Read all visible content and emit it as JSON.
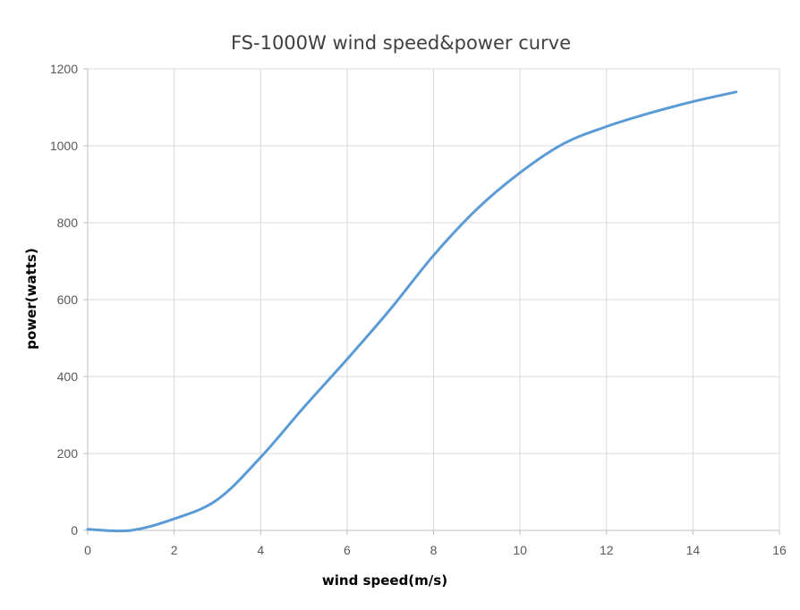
{
  "chart_data": {
    "type": "line",
    "title": "FS-1000W wind speed&power curve",
    "xlabel": "wind speed(m/s)",
    "ylabel": "power(watts)",
    "xlim": [
      0,
      16
    ],
    "ylim": [
      0,
      1200
    ],
    "xticks": [
      0,
      2,
      4,
      6,
      8,
      10,
      12,
      14,
      16
    ],
    "yticks": [
      0,
      200,
      400,
      600,
      800,
      1000,
      1200
    ],
    "grid": true,
    "legend": "none",
    "series": [
      {
        "color": "#5b9bd5",
        "x": [
          0,
          1,
          2,
          3,
          4,
          5,
          6,
          7,
          8,
          9,
          10,
          11,
          12,
          13,
          14,
          15
        ],
        "y": [
          3,
          0,
          30,
          80,
          190,
          320,
          445,
          575,
          715,
          835,
          930,
          1005,
          1050,
          1085,
          1115,
          1140
        ]
      }
    ]
  }
}
